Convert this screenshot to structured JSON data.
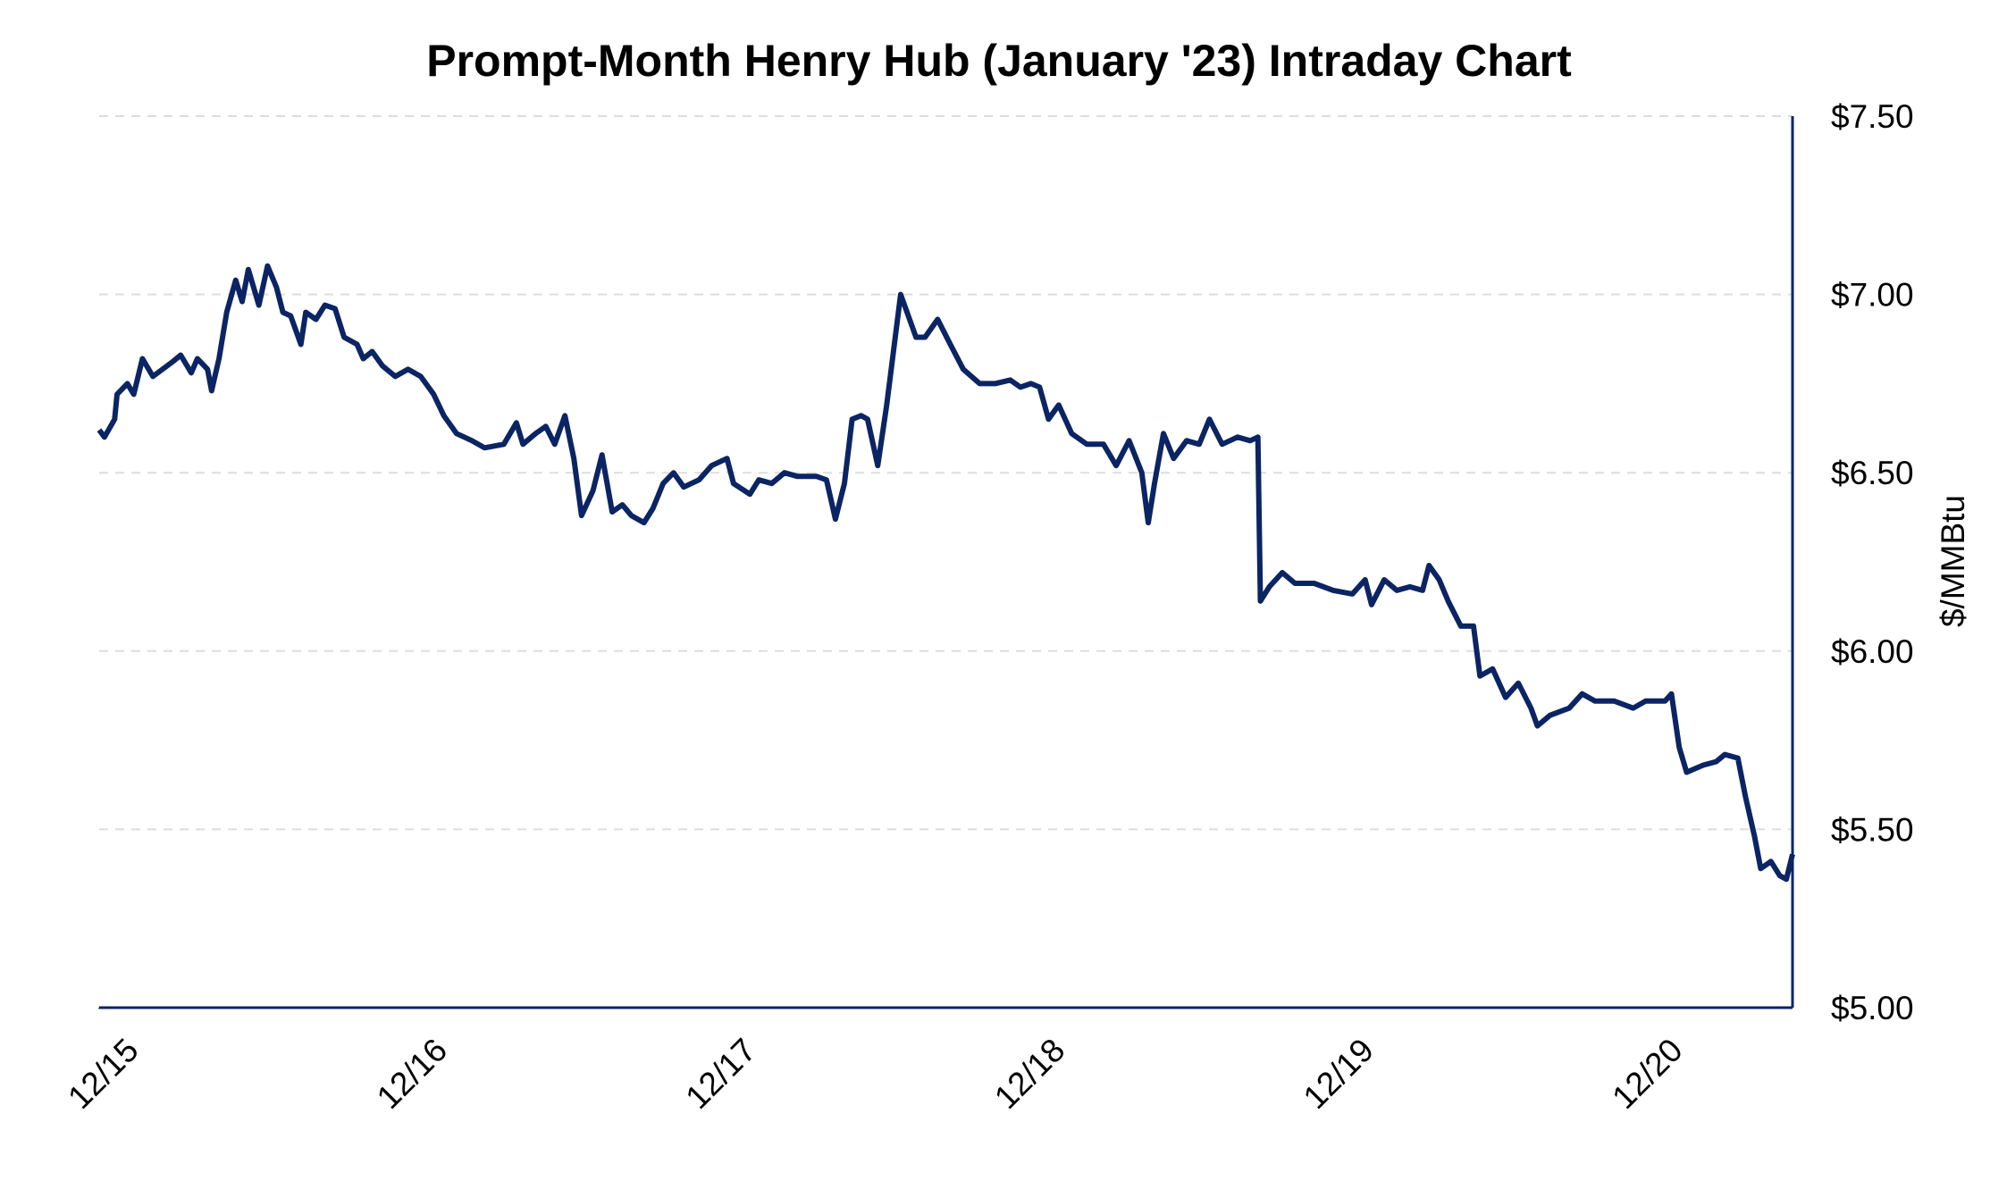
{
  "chart_data": {
    "type": "line",
    "title": "Prompt-Month Henry Hub (January '23) Intraday Chart",
    "y_label": "$/MMBtu",
    "color": "#0b2463",
    "grid": true,
    "x": [
      0,
      0.017,
      0.05,
      0.058,
      0.091,
      0.112,
      0.14,
      0.174,
      0.236,
      0.264,
      0.298,
      0.318,
      0.351,
      0.364,
      0.388,
      0.413,
      0.442,
      0.463,
      0.483,
      0.517,
      0.545,
      0.574,
      0.595,
      0.62,
      0.653,
      0.669,
      0.702,
      0.731,
      0.764,
      0.793,
      0.835,
      0.855,
      0.884,
      0.917,
      0.959,
      1.0,
      1.041,
      1.083,
      1.116,
      1.157,
      1.207,
      1.248,
      1.31,
      1.351,
      1.372,
      1.413,
      1.446,
      1.475,
      1.508,
      1.537,
      1.562,
      1.599,
      1.628,
      1.661,
      1.694,
      1.723,
      1.764,
      1.793,
      1.826,
      1.86,
      1.893,
      1.942,
      1.983,
      2.033,
      2.054,
      2.107,
      2.136,
      2.178,
      2.219,
      2.26,
      2.322,
      2.355,
      2.384,
      2.413,
      2.438,
      2.467,
      2.488,
      2.521,
      2.55,
      2.595,
      2.616,
      2.645,
      2.674,
      2.715,
      2.756,
      2.798,
      2.851,
      2.901,
      2.95,
      2.983,
      3.017,
      3.045,
      3.074,
      3.107,
      3.149,
      3.198,
      3.252,
      3.293,
      3.335,
      3.376,
      3.397,
      3.417,
      3.446,
      3.479,
      3.521,
      3.562,
      3.595,
      3.636,
      3.686,
      3.727,
      3.752,
      3.76,
      3.789,
      3.831,
      3.872,
      3.934,
      3.996,
      4.058,
      4.099,
      4.12,
      4.161,
      4.202,
      4.244,
      4.285,
      4.306,
      4.339,
      4.368,
      4.409,
      4.45,
      4.471,
      4.512,
      4.554,
      4.595,
      4.636,
      4.657,
      4.698,
      4.76,
      4.802,
      4.843,
      4.905,
      4.967,
      5.008,
      5.07,
      5.091,
      5.116,
      5.14,
      5.194,
      5.236,
      5.264,
      5.306,
      5.331,
      5.36,
      5.38,
      5.413,
      5.442,
      5.463,
      5.483
    ],
    "values": [
      6.62,
      6.6,
      6.65,
      6.72,
      6.75,
      6.72,
      6.82,
      6.77,
      6.81,
      6.83,
      6.78,
      6.82,
      6.79,
      6.73,
      6.82,
      6.95,
      7.04,
      6.98,
      7.07,
      6.97,
      7.08,
      7.02,
      6.95,
      6.94,
      6.86,
      6.95,
      6.93,
      6.97,
      6.96,
      6.88,
      6.86,
      6.82,
      6.84,
      6.8,
      6.77,
      6.79,
      6.77,
      6.72,
      6.66,
      6.61,
      6.59,
      6.57,
      6.58,
      6.64,
      6.58,
      6.61,
      6.63,
      6.58,
      6.66,
      6.54,
      6.38,
      6.45,
      6.55,
      6.39,
      6.41,
      6.38,
      6.36,
      6.4,
      6.47,
      6.5,
      6.46,
      6.48,
      6.52,
      6.54,
      6.47,
      6.44,
      6.48,
      6.47,
      6.5,
      6.49,
      6.49,
      6.48,
      6.37,
      6.47,
      6.65,
      6.66,
      6.65,
      6.52,
      6.69,
      7.0,
      6.95,
      6.88,
      6.88,
      6.93,
      6.86,
      6.79,
      6.75,
      6.75,
      6.76,
      6.74,
      6.75,
      6.74,
      6.65,
      6.69,
      6.61,
      6.58,
      6.58,
      6.52,
      6.59,
      6.5,
      6.36,
      6.47,
      6.61,
      6.54,
      6.59,
      6.58,
      6.65,
      6.58,
      6.6,
      6.59,
      6.6,
      6.14,
      6.18,
      6.22,
      6.19,
      6.19,
      6.17,
      6.16,
      6.2,
      6.13,
      6.2,
      6.17,
      6.18,
      6.17,
      6.24,
      6.2,
      6.14,
      6.07,
      6.07,
      5.93,
      5.95,
      5.87,
      5.91,
      5.84,
      5.79,
      5.82,
      5.84,
      5.88,
      5.86,
      5.86,
      5.84,
      5.86,
      5.86,
      5.88,
      5.73,
      5.66,
      5.68,
      5.69,
      5.71,
      5.7,
      5.59,
      5.48,
      5.39,
      5.41,
      5.37,
      5.36,
      5.43
    ],
    "xlim": [
      0,
      5.483
    ],
    "xticks": [
      {
        "value": 0,
        "label": "12/15"
      },
      {
        "value": 1,
        "label": "12/16"
      },
      {
        "value": 2,
        "label": "12/17"
      },
      {
        "value": 3,
        "label": "12/18"
      },
      {
        "value": 4,
        "label": "12/19"
      },
      {
        "value": 5,
        "label": "12/20"
      }
    ],
    "ylim": [
      5.0,
      7.5
    ],
    "yticks": [
      {
        "value": 5.0,
        "label": "$5.00"
      },
      {
        "value": 5.5,
        "label": "$5.50"
      },
      {
        "value": 6.0,
        "label": "$6.00"
      },
      {
        "value": 6.5,
        "label": "$6.50"
      },
      {
        "value": 7.0,
        "label": "$7.00"
      },
      {
        "value": 7.5,
        "label": "$7.50"
      }
    ]
  }
}
